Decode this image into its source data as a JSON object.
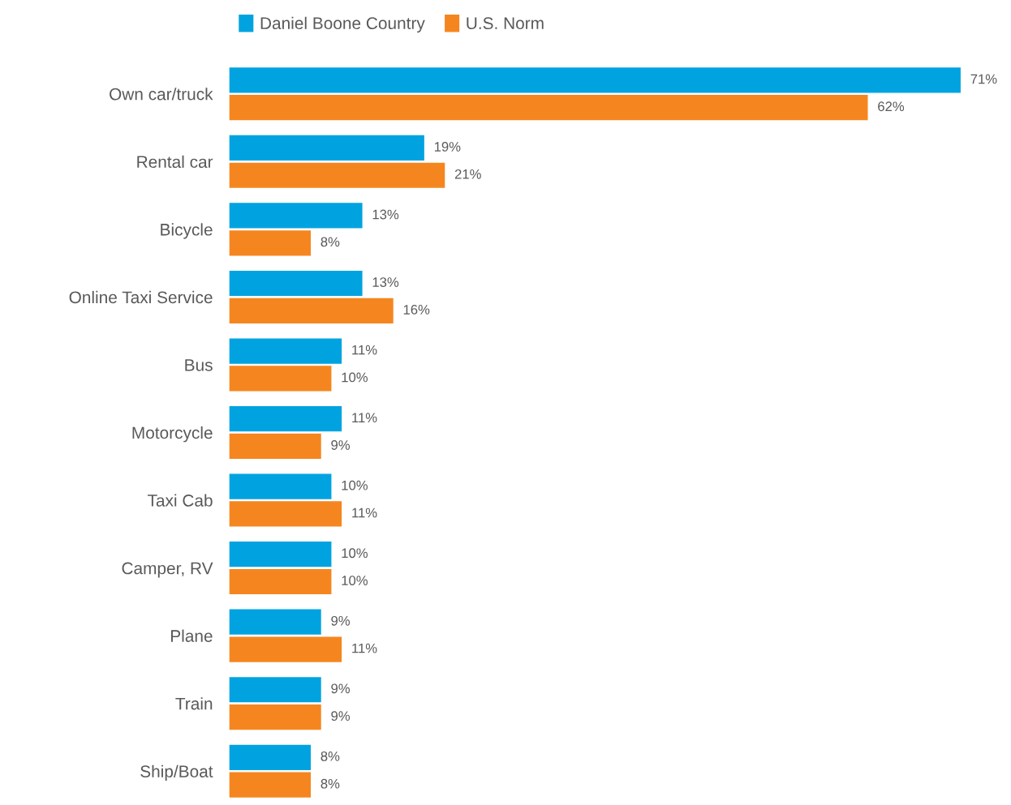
{
  "chart_data": {
    "type": "bar",
    "orientation": "horizontal",
    "categories": [
      "Own car/truck",
      "Rental car",
      "Bicycle",
      "Online Taxi Service",
      "Bus",
      "Motorcycle",
      "Taxi Cab",
      "Camper, RV",
      "Plane",
      "Train",
      "Ship/Boat"
    ],
    "series": [
      {
        "name": "Daniel Boone Country",
        "color": "#00a3e0",
        "values": [
          71,
          19,
          13,
          13,
          11,
          11,
          10,
          10,
          9,
          9,
          8
        ],
        "value_labels": [
          "71%",
          "19%",
          "13%",
          "13%",
          "11%",
          "11%",
          "10%",
          "10%",
          "9%",
          "9%",
          "8%"
        ]
      },
      {
        "name": "U.S. Norm",
        "color": "#f5861f",
        "values": [
          62,
          21,
          8,
          16,
          10,
          9,
          11,
          10,
          11,
          9,
          8
        ],
        "value_labels": [
          "62%",
          "21%",
          "8%",
          "16%",
          "10%",
          "9%",
          "11%",
          "10%",
          "11%",
          "9%",
          "8%"
        ]
      }
    ],
    "legend": "top",
    "grid": false
  }
}
